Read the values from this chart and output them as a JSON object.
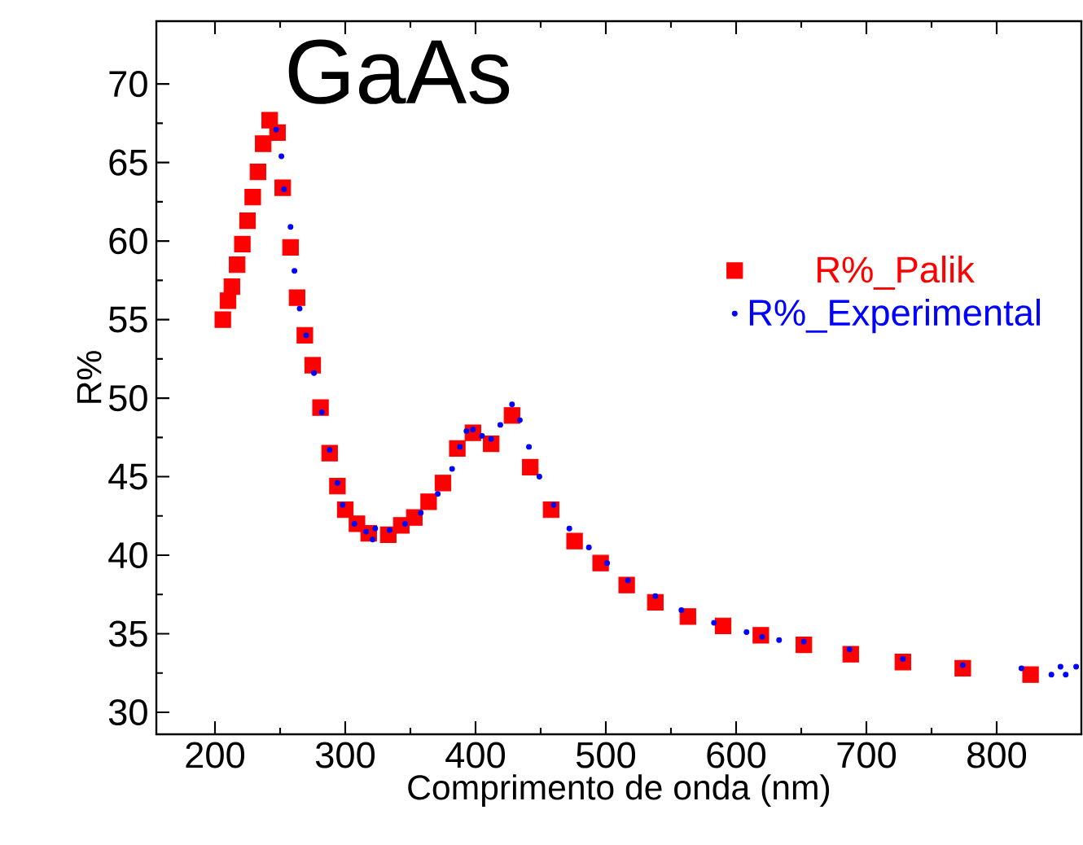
{
  "chart_data": {
    "type": "scatter",
    "title": "GaAs",
    "xlabel": "Comprimento de onda (nm)",
    "ylabel": "R%",
    "xlim": [
      155,
      865
    ],
    "ylim": [
      28.6,
      74
    ],
    "xticks": [
      200,
      300,
      400,
      500,
      600,
      700,
      800
    ],
    "yticks": [
      30,
      35,
      40,
      45,
      50,
      55,
      60,
      65,
      70
    ],
    "grid": false,
    "legend": "right",
    "series": [
      {
        "name": "R%_Palik",
        "color": "#ff0000",
        "marker": "square",
        "x": [
          206,
          210,
          213,
          217,
          221,
          225,
          229,
          233,
          237,
          242,
          248,
          252,
          258,
          263,
          269,
          275,
          281,
          288,
          294,
          300,
          309,
          318,
          333,
          343,
          353,
          364,
          375,
          386,
          398,
          412,
          428,
          442,
          458,
          476,
          496,
          516,
          538,
          563,
          590,
          619,
          652,
          688,
          728,
          774,
          826
        ],
        "values": [
          55.0,
          56.2,
          57.1,
          58.5,
          59.8,
          61.3,
          62.8,
          64.4,
          66.2,
          67.7,
          66.9,
          63.4,
          59.6,
          56.4,
          54.0,
          52.1,
          49.4,
          46.5,
          44.4,
          42.9,
          42.0,
          41.4,
          41.3,
          41.9,
          42.4,
          43.4,
          44.6,
          46.8,
          47.8,
          47.1,
          48.9,
          45.6,
          42.9,
          40.9,
          39.5,
          38.1,
          37.0,
          36.1,
          35.5,
          34.9,
          34.3,
          33.7,
          33.2,
          32.8,
          32.4
        ]
      },
      {
        "name": "R%_Experimental",
        "color": "#0000ff",
        "marker": "circle",
        "x": [
          247,
          251,
          253,
          258,
          261,
          265,
          270,
          276,
          282,
          288,
          294,
          298,
          307,
          316,
          321,
          323,
          334,
          346,
          358,
          371,
          382,
          388,
          393,
          398,
          405,
          412,
          419,
          428,
          434,
          441,
          449,
          460,
          472,
          487,
          501,
          517,
          538,
          558,
          583,
          608,
          620,
          633,
          652,
          687,
          728,
          774,
          819,
          842,
          849,
          853,
          861
        ],
        "values": [
          67.1,
          65.4,
          63.3,
          60.9,
          58.1,
          55.7,
          54.0,
          51.6,
          49.1,
          46.7,
          44.6,
          43.2,
          42.0,
          41.5,
          41.0,
          41.7,
          41.6,
          42.0,
          42.7,
          43.9,
          45.5,
          46.9,
          47.9,
          48.0,
          47.6,
          47.4,
          48.3,
          49.6,
          48.6,
          46.9,
          45.0,
          43.2,
          41.7,
          40.5,
          39.5,
          38.4,
          37.4,
          36.5,
          35.7,
          35.1,
          34.8,
          34.6,
          34.5,
          34.0,
          33.4,
          33.0,
          32.8,
          32.4,
          32.9,
          32.4,
          32.9
        ]
      }
    ]
  }
}
